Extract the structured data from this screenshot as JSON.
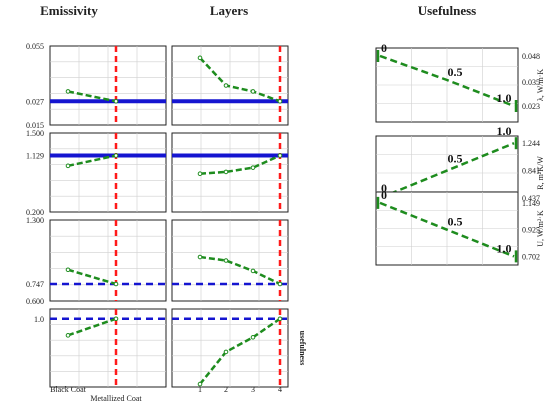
{
  "chart_data": {
    "type": "line",
    "column_titles": [
      "Emissivity",
      "Layers",
      "Usefulness"
    ],
    "left_panels": {
      "emissivity": {
        "categories": [
          "Black Coat",
          "Metallized Coat"
        ],
        "current_value_line": "Metallized Coat"
      },
      "layers": {
        "categories": [
          "1",
          "2",
          "3",
          "4"
        ],
        "current_value_line": "4"
      },
      "rows": [
        {
          "ylim": [
            0.015,
            0.055
          ],
          "tick_labels": [
            "0.055",
            "0.027",
            "0.015"
          ],
          "tick_values": [
            0.055,
            0.027,
            0.015
          ],
          "hline": 0.027,
          "hline_style": "solid",
          "emissivity_values": [
            0.032,
            0.027
          ],
          "layers_values": [
            0.049,
            0.035,
            0.032,
            0.027
          ]
        },
        {
          "ylim": [
            0.2,
            1.5
          ],
          "tick_labels": [
            "1.500",
            "1.129",
            "0.200"
          ],
          "tick_values": [
            1.5,
            1.129,
            0.2
          ],
          "hline": 1.129,
          "hline_style": "solid",
          "emissivity_values": [
            0.96,
            1.129
          ],
          "layers_values": [
            0.83,
            0.86,
            0.93,
            1.129
          ]
        },
        {
          "ylim": [
            0.6,
            1.3
          ],
          "tick_labels": [
            "1.300",
            "0.747",
            "0.600"
          ],
          "tick_values": [
            1.3,
            0.747,
            0.6
          ],
          "hline": 0.747,
          "hline_style": "dashed",
          "emissivity_values": [
            0.87,
            0.747
          ],
          "layers_values": [
            0.98,
            0.95,
            0.86,
            0.747
          ]
        },
        {
          "ylim": [
            0.3,
            1.1
          ],
          "tick_labels": [
            "1.0"
          ],
          "tick_values": [
            1.0
          ],
          "hline": 1.0,
          "hline_style": "dashed",
          "right_label": "usefulness",
          "emissivity_values": [
            0.83,
            1.0
          ],
          "layers_values": [
            0.33,
            0.66,
            0.81,
            1.0
          ]
        }
      ]
    },
    "right_panels": [
      {
        "ylabel": "λ, W/m·K",
        "ylim": [
          0.015,
          0.052
        ],
        "tick_labels": [
          "0.048",
          "0.035",
          "0.023"
        ],
        "tick_values": [
          0.048,
          0.035,
          0.023
        ],
        "x": [
          0,
          0.5,
          1.0
        ],
        "y": [
          0.048,
          0.036,
          0.023
        ],
        "point_labels": [
          "0",
          "0.5",
          "1.0"
        ]
      },
      {
        "ylabel": "R, m²K/W",
        "ylim": [
          0.26,
          1.35
        ],
        "tick_labels": [
          "1.244",
          "0.841",
          "0.437"
        ],
        "tick_values": [
          1.244,
          0.841,
          0.437
        ],
        "x": [
          0,
          0.5,
          1.0
        ],
        "y": [
          0.437,
          0.841,
          1.244
        ],
        "point_labels": [
          "0",
          "0.5",
          "1.0"
        ]
      },
      {
        "ylabel": "U, W/m²·K",
        "ylim": [
          0.63,
          1.24
        ],
        "tick_labels": [
          "1.149",
          "0.925",
          "0.702"
        ],
        "tick_values": [
          1.149,
          0.925,
          0.702
        ],
        "x": [
          0,
          0.5,
          1.0
        ],
        "y": [
          1.149,
          0.925,
          0.702
        ],
        "point_labels": [
          "0",
          "0.5",
          "1.0"
        ]
      }
    ],
    "colors": {
      "series": "#1e8c1e",
      "reference_line": "#1515d0",
      "current_line": "#ff1a1a",
      "grid": "#cfcfcf"
    },
    "grid": true
  }
}
